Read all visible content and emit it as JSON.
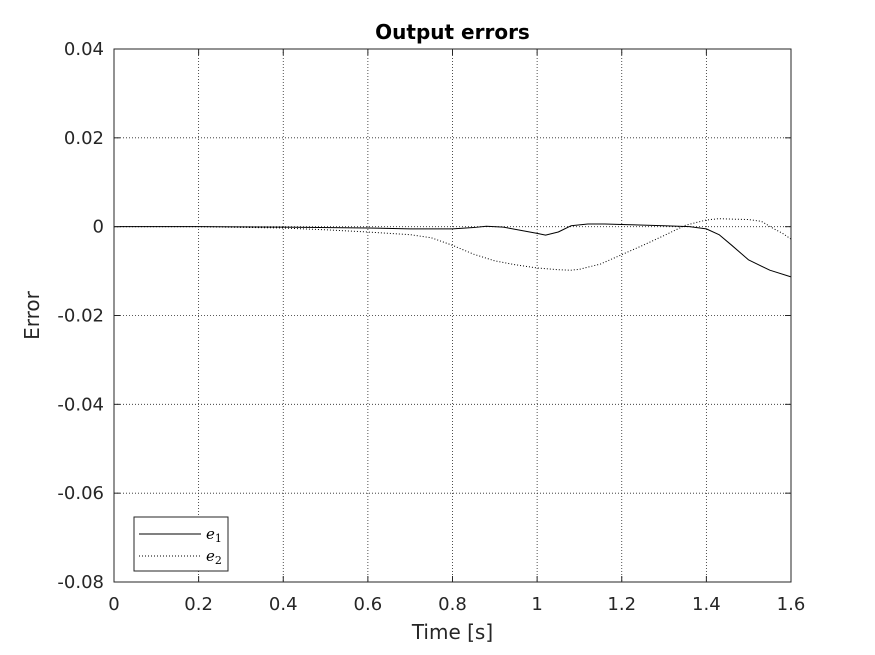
{
  "chart_data": {
    "type": "line",
    "title": "Output errors",
    "xlabel": "Time [s]",
    "ylabel": "Error",
    "xlim": [
      0,
      1.6
    ],
    "ylim": [
      -0.08,
      0.04
    ],
    "xticks": [
      0,
      0.2,
      0.4,
      0.6,
      0.8,
      1,
      1.2,
      1.4,
      1.6
    ],
    "yticks": [
      0.04,
      0.02,
      0,
      -0.02,
      -0.04,
      -0.06,
      -0.08
    ],
    "grid": true,
    "legend_position": "bottom-left",
    "series": [
      {
        "name": "e",
        "subscript": "1",
        "style": "solid",
        "color": "#000000",
        "x": [
          0,
          0.2,
          0.4,
          0.6,
          0.7,
          0.8,
          0.85,
          0.88,
          0.92,
          0.96,
          1.0,
          1.02,
          1.05,
          1.08,
          1.12,
          1.16,
          1.2,
          1.3,
          1.36,
          1.4,
          1.43,
          1.46,
          1.5,
          1.55,
          1.6
        ],
        "y": [
          0,
          0,
          -0.0001,
          -0.0003,
          -0.0005,
          -0.0005,
          -0.0002,
          0.0001,
          -0.0001,
          -0.0008,
          -0.0015,
          -0.0019,
          -0.0012,
          0.0002,
          0.0006,
          0.0006,
          0.0005,
          0.0002,
          0,
          -0.0005,
          -0.0018,
          -0.0042,
          -0.0075,
          -0.0098,
          -0.0113
        ]
      },
      {
        "name": "e",
        "subscript": "2",
        "style": "dotted",
        "color": "#000000",
        "x": [
          0,
          0.2,
          0.4,
          0.5,
          0.6,
          0.7,
          0.75,
          0.8,
          0.85,
          0.9,
          0.95,
          1.0,
          1.05,
          1.08,
          1.1,
          1.15,
          1.2,
          1.25,
          1.3,
          1.35,
          1.4,
          1.43,
          1.46,
          1.5,
          1.53,
          1.56,
          1.58,
          1.6
        ],
        "y": [
          0,
          0,
          -0.0003,
          -0.0007,
          -0.0012,
          -0.0018,
          -0.0025,
          -0.0042,
          -0.0062,
          -0.0077,
          -0.0086,
          -0.0093,
          -0.0097,
          -0.0098,
          -0.0096,
          -0.0084,
          -0.0063,
          -0.0042,
          -0.002,
          0.0003,
          0.0015,
          0.0018,
          0.0017,
          0.0016,
          0.0012,
          -0.0005,
          -0.0015,
          -0.0028
        ]
      }
    ]
  }
}
